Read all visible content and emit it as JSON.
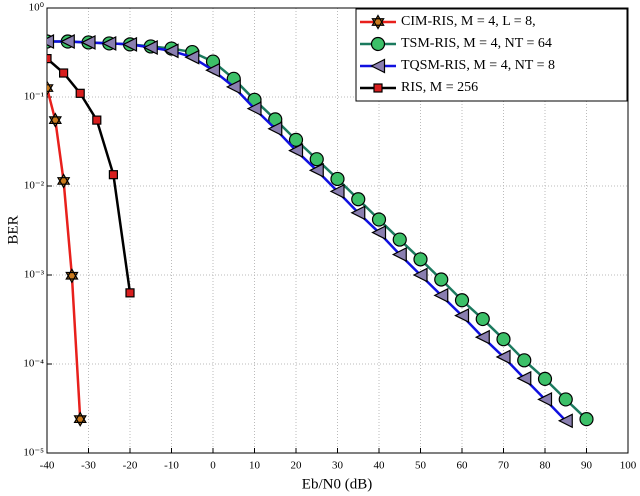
{
  "chart_data": {
    "type": "line",
    "x_label": "Eb/N0 (dB)",
    "y_label": "BER",
    "xlim": [
      -40,
      100
    ],
    "xticks": [
      -40,
      -30,
      -20,
      -10,
      0,
      10,
      20,
      30,
      40,
      50,
      60,
      70,
      80,
      90,
      100
    ],
    "ylim": [
      1e-05,
      1
    ],
    "log_y": true,
    "grid": true,
    "legend": "upper right",
    "yticks": [
      {
        "value": 1,
        "label": "10⁰"
      },
      {
        "value": 0.1,
        "label": "10⁻¹"
      },
      {
        "value": 0.01,
        "label": "10⁻²"
      },
      {
        "value": 0.001,
        "label": "10⁻³"
      },
      {
        "value": 0.0001,
        "label": "10⁻⁴"
      },
      {
        "value": 1e-05,
        "label": "10⁻⁵"
      }
    ],
    "series": [
      {
        "name": "CIM-RIS, M = 4, L = 8,",
        "color": "#e8201c",
        "marker": "hexagram",
        "marker_color": "#c97a1e",
        "x": [
          -40,
          -38,
          -36,
          -34,
          -32
        ],
        "values": [
          0.126,
          0.055,
          0.0114,
          0.00098,
          2.4e-05
        ]
      },
      {
        "name": "TSM-RIS, M = 4, NT = 64",
        "color": "#1b7a5e",
        "marker": "circle",
        "marker_color": "#3cc068",
        "x": [
          -40,
          -35,
          -30,
          -25,
          -20,
          -15,
          -10,
          -5,
          0,
          5,
          10,
          15,
          20,
          25,
          30,
          35,
          40,
          45,
          50,
          55,
          60,
          65,
          70,
          75,
          80,
          85,
          90
        ],
        "values": [
          0.42,
          0.42,
          0.41,
          0.4,
          0.39,
          0.37,
          0.35,
          0.32,
          0.25,
          0.16,
          0.093,
          0.056,
          0.033,
          0.02,
          0.012,
          0.0071,
          0.0042,
          0.0025,
          0.0015,
          0.00089,
          0.00052,
          0.00032,
          0.00019,
          0.00011,
          6.8e-05,
          4e-05,
          2.4e-05
        ]
      },
      {
        "name": "TQSM-RIS, M = 4, NT = 8",
        "color": "#1010e0",
        "marker": "triangle-left",
        "marker_color": "#8a7fb0",
        "x": [
          -40,
          -35,
          -30,
          -25,
          -20,
          -15,
          -10,
          -5,
          0,
          5,
          10,
          15,
          20,
          25,
          30,
          35,
          40,
          45,
          50,
          55,
          60,
          65,
          70,
          75,
          80,
          85
        ],
        "values": [
          0.42,
          0.42,
          0.41,
          0.4,
          0.39,
          0.36,
          0.33,
          0.28,
          0.2,
          0.13,
          0.074,
          0.044,
          0.025,
          0.015,
          0.0087,
          0.005,
          0.003,
          0.0017,
          0.001,
          0.00059,
          0.00035,
          0.0002,
          0.00012,
          6.9e-05,
          4e-05,
          2.3e-05
        ]
      },
      {
        "name": "RIS, M = 256",
        "color": "#000000",
        "marker": "square",
        "marker_color": "#d81e1e",
        "x": [
          -40,
          -36,
          -32,
          -28,
          -24,
          -20
        ],
        "values": [
          0.27,
          0.186,
          0.11,
          0.055,
          0.0134,
          0.00063
        ]
      }
    ]
  }
}
